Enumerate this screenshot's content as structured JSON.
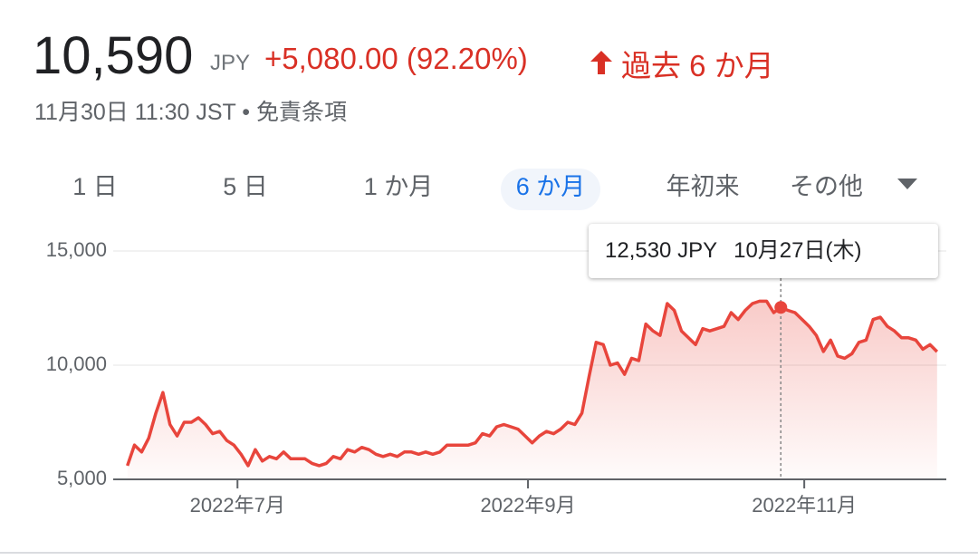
{
  "header": {
    "price": "10,590",
    "currency": "JPY",
    "change": "+5,080.00 (92.20%)",
    "period": "過去 6 か月",
    "timestamp": "11月30日 11:30 JST",
    "disclaimer": "免責条項"
  },
  "tabs": [
    "1 日",
    "5 日",
    "1 か月",
    "6 か月",
    "年初来",
    "その他"
  ],
  "tooltip": {
    "value_label": "12,530 JPY",
    "date": "10月27日(木)"
  },
  "chart_data": {
    "type": "line",
    "color": "#e8453c",
    "values": [
      5600,
      6500,
      6200,
      6800,
      7900,
      8800,
      7400,
      6900,
      7500,
      7500,
      7700,
      7400,
      7000,
      7100,
      6700,
      6500,
      6100,
      5600,
      6300,
      5800,
      6000,
      5900,
      6200,
      5900,
      5900,
      5900,
      5700,
      5600,
      5700,
      6000,
      5900,
      6300,
      6200,
      6400,
      6300,
      6100,
      6000,
      6100,
      6000,
      6200,
      6200,
      6100,
      6200,
      6100,
      6200,
      6500,
      6500,
      6500,
      6500,
      6600,
      7000,
      6900,
      7300,
      7400,
      7300,
      7200,
      6900,
      6600,
      6900,
      7100,
      7000,
      7200,
      7500,
      7400,
      7900,
      9500,
      11000,
      10900,
      10000,
      10100,
      9600,
      10300,
      10200,
      11800,
      11500,
      11300,
      12700,
      12400,
      11500,
      11200,
      10900,
      11600,
      11500,
      11600,
      11700,
      12300,
      12000,
      12400,
      12700,
      12800,
      12800,
      12300,
      12530,
      12400,
      12300,
      12000,
      11700,
      11300,
      10600,
      11100,
      10400,
      10300,
      10500,
      11000,
      11100,
      12000,
      12100,
      11700,
      11500,
      11200,
      11200,
      11100,
      10700,
      10900,
      10590
    ],
    "xlim": [
      -2,
      115.3
    ],
    "xticks": [
      {
        "value": 15.5,
        "label": "2022年7月"
      },
      {
        "value": 56.4,
        "label": "2022年9月"
      },
      {
        "value": 95.3,
        "label": "2022年11月"
      }
    ],
    "ylim": [
      5000,
      15000
    ],
    "yticks": [
      {
        "value": 5000,
        "label": "5,000"
      },
      {
        "value": 10000,
        "label": "10,000"
      },
      {
        "value": 15000,
        "label": "15,000"
      }
    ],
    "grid": true
  }
}
